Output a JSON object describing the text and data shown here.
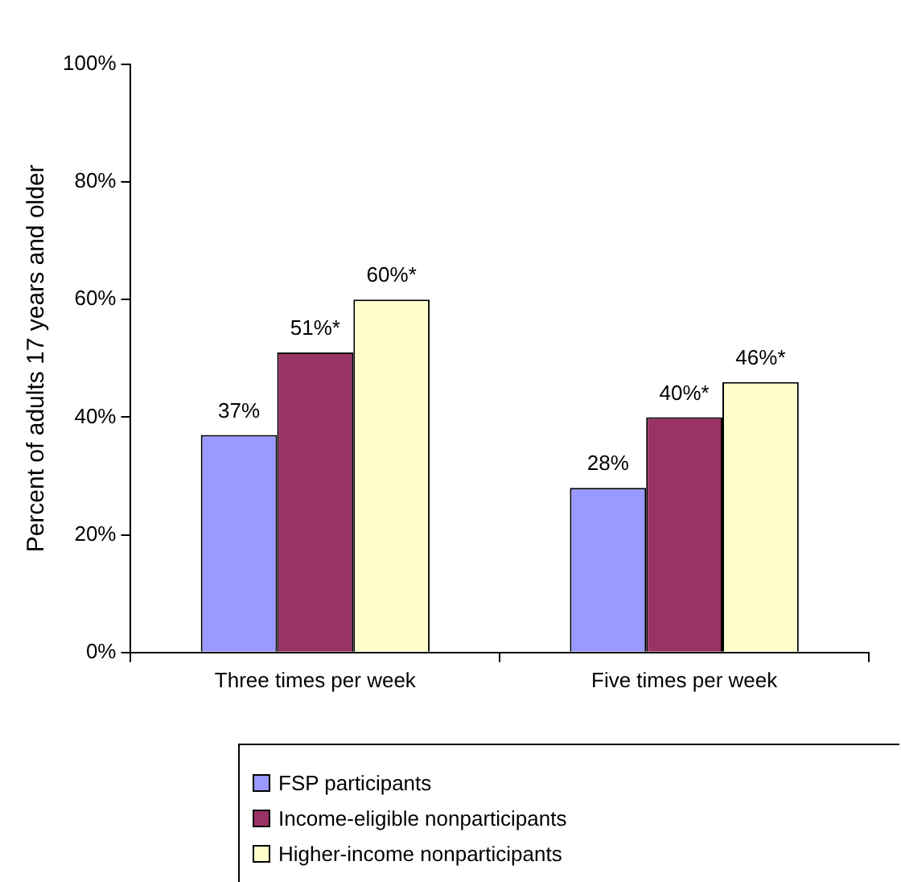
{
  "chart_data": {
    "type": "bar",
    "ylabel": "Percent of adults 17 years and older",
    "categories": [
      "Three times per week",
      "Five times per week"
    ],
    "series": [
      {
        "name": "FSP participants",
        "color": "#9999ff",
        "values": [
          37,
          28
        ],
        "value_labels": [
          "37%",
          "28%"
        ]
      },
      {
        "name": "Income-eligible nonparticipants",
        "color": "#993366",
        "values": [
          51,
          40
        ],
        "value_labels": [
          "51%*",
          "40%*"
        ]
      },
      {
        "name": "Higher-income nonparticipants",
        "color": "#ffffcc",
        "values": [
          60,
          46
        ],
        "value_labels": [
          "60%*",
          "46%*"
        ]
      }
    ],
    "ylim": [
      0,
      100
    ],
    "yticks": [
      {
        "value": 0,
        "label": "0%"
      },
      {
        "value": 20,
        "label": "20%"
      },
      {
        "value": 40,
        "label": "40%"
      },
      {
        "value": 60,
        "label": "60%"
      },
      {
        "value": 80,
        "label": "80%"
      },
      {
        "value": 100,
        "label": "100%"
      }
    ],
    "grid": false,
    "legend": "bottom"
  }
}
